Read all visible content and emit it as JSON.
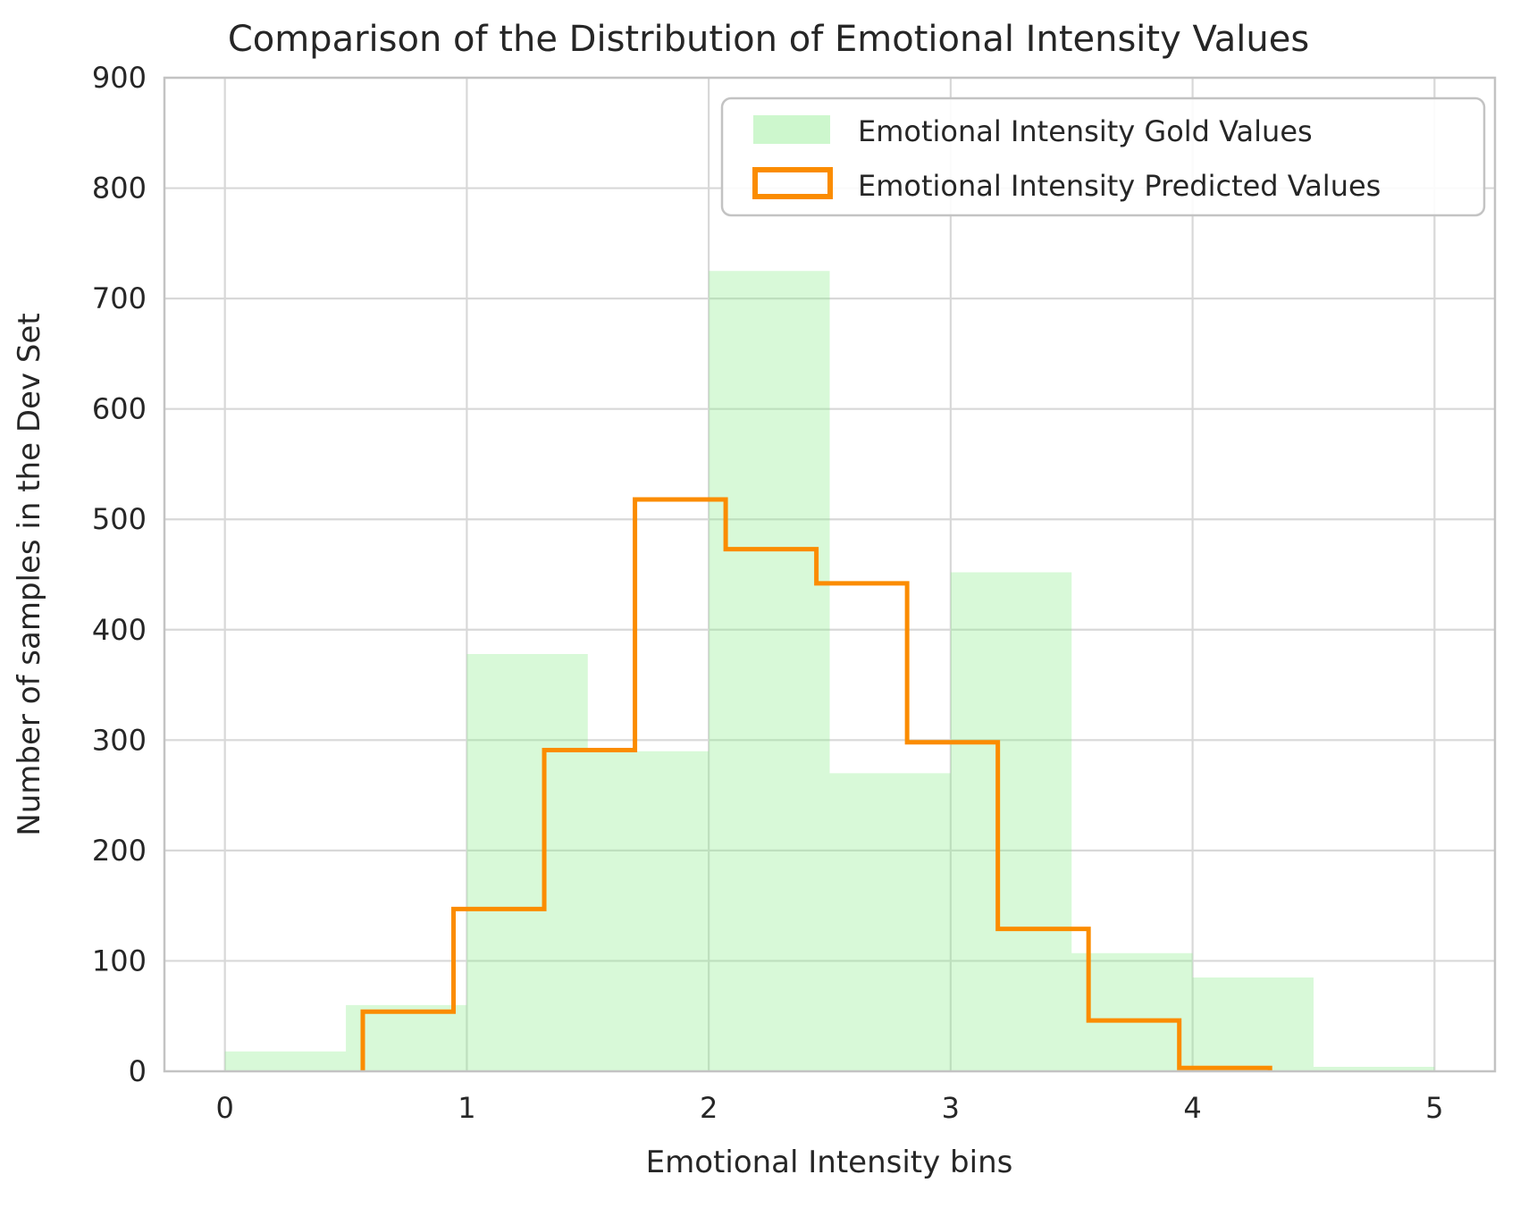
{
  "figure": {
    "title": "Comparison of the Distribution of Emotional Intensity Values",
    "xlabel": "Emotional Intensity bins",
    "ylabel": "Number of samples in the Dev Set"
  },
  "legend": {
    "position": "upper right",
    "items": [
      {
        "label": "Emotional Intensity Gold Values",
        "swatch": "green-filled-patch"
      },
      {
        "label": "Emotional Intensity Predicted Values",
        "swatch": "orange-outline-patch"
      }
    ]
  },
  "colors": {
    "background": "#FFFFFF",
    "text": "#262626",
    "grid": "#D8D8D8",
    "spine": "#C3C3C3",
    "gold_fill": "#90EE90",
    "gold_fill_opacity": 0.35,
    "predicted_stroke": "#FB8C00"
  },
  "chart_data": {
    "type": "histogram",
    "title": "Comparison of the Distribution of Emotional Intensity Values",
    "xlabel": "Emotional Intensity bins",
    "ylabel": "Number of samples in the Dev Set",
    "xlim": [
      -0.25,
      5.25
    ],
    "ylim": [
      0,
      900
    ],
    "x_ticks": [
      0,
      1,
      2,
      3,
      4,
      5
    ],
    "y_ticks": [
      0,
      100,
      200,
      300,
      400,
      500,
      600,
      700,
      800,
      900
    ],
    "grid": true,
    "legend_position": "upper right",
    "series": [
      {
        "name": "Emotional Intensity Gold Values",
        "style": "filled",
        "bin_edges": [
          0,
          0.5,
          1.0,
          1.5,
          2.0,
          2.5,
          3.0,
          3.5,
          4.0,
          4.5,
          5.0
        ],
        "counts": [
          18,
          60,
          378,
          290,
          725,
          270,
          452,
          107,
          85,
          4
        ]
      },
      {
        "name": "Emotional Intensity Predicted Values",
        "style": "step",
        "bin_edges": [
          0.57,
          0.945,
          1.32,
          1.695,
          2.07,
          2.445,
          2.82,
          3.195,
          3.57,
          3.945,
          4.32
        ],
        "counts": [
          54,
          147,
          291,
          518,
          473,
          442,
          298,
          129,
          46,
          3
        ]
      }
    ]
  }
}
